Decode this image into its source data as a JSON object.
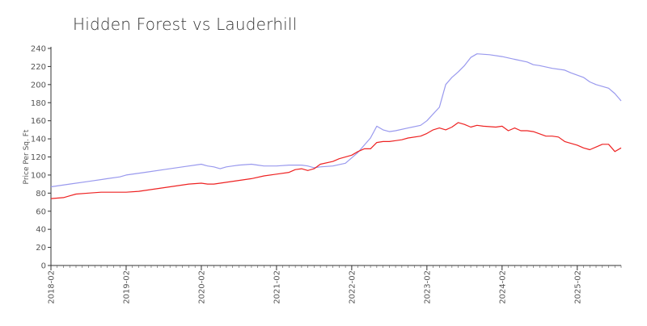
{
  "chart_data": {
    "type": "line",
    "title": "Hidden Forest vs Lauderhill",
    "xlabel": "",
    "ylabel": "Price Per Sq. Ft",
    "ylim": [
      0,
      240
    ],
    "xlim": [
      "2018-02",
      "2025-09"
    ],
    "grid": false,
    "legend": "none",
    "y_ticks": [
      0,
      20,
      40,
      60,
      80,
      100,
      120,
      140,
      160,
      180,
      200,
      220,
      240
    ],
    "x_ticks": [
      "2018-02",
      "2019-02",
      "2020-02",
      "2021-02",
      "2022-02",
      "2023-02",
      "2024-02",
      "2025-02"
    ],
    "series": [
      {
        "color": "#9999ee",
        "x": [
          "2018-02",
          "2018-05",
          "2018-08",
          "2018-11",
          "2019-01",
          "2019-02",
          "2019-05",
          "2019-08",
          "2019-11",
          "2020-02",
          "2020-03",
          "2020-04",
          "2020-05",
          "2020-06",
          "2020-07",
          "2020-08",
          "2020-10",
          "2020-11",
          "2020-12",
          "2021-02",
          "2021-04",
          "2021-06",
          "2021-07",
          "2021-08",
          "2021-09",
          "2021-11",
          "2022-01",
          "2022-03",
          "2022-05",
          "2022-06",
          "2022-07",
          "2022-08",
          "2022-09",
          "2022-11",
          "2023-01",
          "2023-02",
          "2023-04",
          "2023-05",
          "2023-06",
          "2023-07",
          "2023-08",
          "2023-09",
          "2023-10",
          "2023-12",
          "2024-02",
          "2024-04",
          "2024-06",
          "2024-07",
          "2024-08",
          "2024-10",
          "2024-12",
          "2025-01",
          "2025-03",
          "2025-04",
          "2025-05",
          "2025-07",
          "2025-08",
          "2025-09"
        ],
        "values": [
          87,
          90,
          93,
          96,
          98,
          100,
          103,
          106,
          109,
          112,
          110,
          109,
          107,
          109,
          110,
          111,
          112,
          111,
          110,
          110,
          111,
          111,
          110,
          108,
          109,
          110,
          113,
          125,
          141,
          154,
          150,
          148,
          149,
          152,
          155,
          160,
          175,
          200,
          208,
          214,
          221,
          230,
          234,
          233,
          231,
          228,
          225,
          222,
          221,
          218,
          216,
          213,
          208,
          203,
          200,
          196,
          190,
          182
        ]
      },
      {
        "color": "#ee2222",
        "x": [
          "2018-02",
          "2018-04",
          "2018-05",
          "2018-06",
          "2018-08",
          "2018-10",
          "2018-12",
          "2019-02",
          "2019-04",
          "2019-06",
          "2019-09",
          "2019-12",
          "2020-02",
          "2020-03",
          "2020-04",
          "2020-06",
          "2020-08",
          "2020-10",
          "2020-12",
          "2021-02",
          "2021-04",
          "2021-05",
          "2021-06",
          "2021-07",
          "2021-08",
          "2021-09",
          "2021-11",
          "2021-12",
          "2022-02",
          "2022-03",
          "2022-04",
          "2022-05",
          "2022-06",
          "2022-07",
          "2022-08",
          "2022-09",
          "2022-10",
          "2022-11",
          "2023-01",
          "2023-02",
          "2023-03",
          "2023-04",
          "2023-05",
          "2023-06",
          "2023-07",
          "2023-08",
          "2023-09",
          "2023-10",
          "2023-11",
          "2024-01",
          "2024-02",
          "2024-03",
          "2024-04",
          "2024-05",
          "2024-06",
          "2024-07",
          "2024-09",
          "2024-10",
          "2024-11",
          "2024-12",
          "2025-02",
          "2025-03",
          "2025-04",
          "2025-05",
          "2025-06",
          "2025-07",
          "2025-08",
          "2025-09"
        ],
        "values": [
          74,
          75,
          77,
          79,
          80,
          81,
          81,
          81,
          82,
          84,
          87,
          90,
          91,
          90,
          90,
          92,
          94,
          96,
          99,
          101,
          103,
          106,
          107,
          105,
          107,
          112,
          115,
          118,
          122,
          126,
          129,
          129,
          136,
          137,
          137,
          138,
          139,
          141,
          143,
          146,
          150,
          152,
          150,
          153,
          158,
          156,
          153,
          155,
          154,
          153,
          154,
          149,
          152,
          149,
          149,
          148,
          143,
          143,
          142,
          137,
          133,
          130,
          128,
          131,
          134,
          134,
          126,
          130
        ]
      }
    ]
  }
}
